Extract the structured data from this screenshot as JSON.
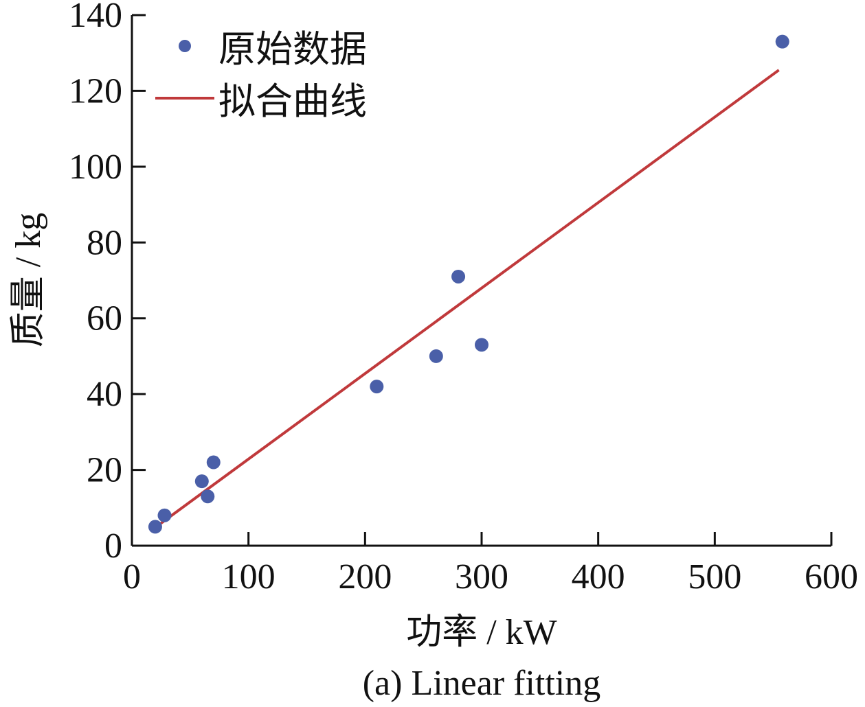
{
  "chart_data": {
    "type": "scatter",
    "xlabel": "功率 / kW",
    "ylabel": "质量 / kg",
    "caption": "(a) Linear fitting",
    "xlim": [
      0,
      600
    ],
    "ylim": [
      0,
      140
    ],
    "xticks": [
      "0",
      "100",
      "200",
      "300",
      "400",
      "500",
      "600"
    ],
    "yticks": [
      "0",
      "20",
      "40",
      "60",
      "80",
      "100",
      "120",
      "140"
    ],
    "grid": false,
    "legend_position": "top-left",
    "series": [
      {
        "name": "原始数据",
        "kind": "scatter",
        "color": "#4a5fa8",
        "x": [
          20,
          28,
          60,
          65,
          70,
          210,
          261,
          280,
          300,
          558
        ],
        "y": [
          5,
          8,
          17,
          13,
          22,
          42,
          50,
          71,
          53,
          133
        ]
      },
      {
        "name": "拟合曲线",
        "kind": "line",
        "color": "#c0393b",
        "x": [
          20,
          555
        ],
        "y": [
          4.8,
          125.5
        ]
      }
    ]
  }
}
